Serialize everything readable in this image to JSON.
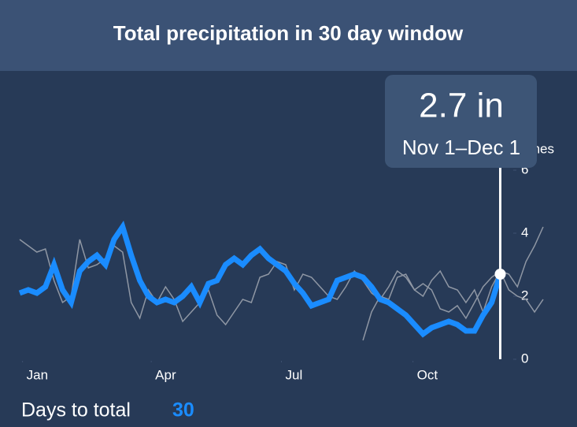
{
  "chart_data": {
    "type": "line",
    "title": "Total precipitation in 30 day window",
    "y_label": "inches",
    "x": [
      -2,
      4,
      10,
      16,
      22,
      28,
      34,
      40,
      46,
      52,
      58,
      64,
      70,
      76,
      82,
      88,
      94,
      100,
      106,
      112,
      118,
      124,
      130,
      136,
      142,
      148,
      154,
      160,
      166,
      172,
      178,
      184,
      190,
      196,
      202,
      208,
      214,
      220,
      226,
      232,
      238,
      244,
      250,
      256,
      262,
      268,
      274,
      280,
      286,
      292,
      298,
      304,
      310,
      316,
      322,
      328,
      334,
      340,
      346,
      352,
      358,
      364
    ],
    "series": [
      {
        "color": "#1a8cff",
        "width": 7,
        "values": [
          2.1,
          2.2,
          2.1,
          2.3,
          3.0,
          2.2,
          1.8,
          2.8,
          3.1,
          3.3,
          3.0,
          3.8,
          4.2,
          3.3,
          2.5,
          2.0,
          1.8,
          1.9,
          1.8,
          2.0,
          2.3,
          1.8,
          2.4,
          2.5,
          3.0,
          3.2,
          3.0,
          3.3,
          3.5,
          3.2,
          3.0,
          2.8,
          2.4,
          2.1,
          1.7,
          1.8,
          1.9,
          2.5,
          2.6,
          2.7,
          2.6,
          2.3,
          1.9,
          1.8,
          1.6,
          1.4,
          1.1,
          0.8,
          1.0,
          1.1,
          1.2,
          1.1,
          0.9,
          0.9,
          1.4,
          1.8,
          2.7,
          null,
          null,
          null,
          null,
          null
        ]
      },
      {
        "color": "#8f97a4",
        "width": 1.5,
        "values": [
          3.8,
          3.6,
          3.4,
          3.5,
          2.5,
          1.8,
          2.0,
          3.8,
          2.9,
          3.0,
          3.2,
          3.6,
          3.4,
          1.8,
          1.3,
          2.2,
          1.8,
          2.3,
          1.9,
          1.2,
          1.5,
          1.8,
          2.2,
          1.4,
          1.1,
          1.5,
          1.9,
          1.8,
          2.6,
          2.7,
          3.1,
          3.0,
          2.2,
          2.7,
          2.6,
          2.3,
          2.0,
          1.9,
          2.3,
          2.8,
          2.5,
          2.1,
          1.9,
          2.3,
          2.8,
          2.6,
          2.2,
          2.0,
          2.5,
          2.8,
          2.3,
          2.2,
          1.8,
          2.2,
          1.5,
          2.3,
          2.8,
          2.2,
          2.0,
          1.9,
          1.5,
          1.9
        ]
      },
      {
        "color": "#8f97a4",
        "width": 1.5,
        "values": [
          null,
          null,
          null,
          null,
          null,
          null,
          null,
          null,
          null,
          null,
          null,
          null,
          null,
          null,
          null,
          null,
          null,
          null,
          null,
          null,
          null,
          null,
          null,
          null,
          null,
          null,
          null,
          null,
          null,
          null,
          null,
          null,
          null,
          null,
          null,
          null,
          null,
          null,
          null,
          null,
          0.6,
          1.5,
          2.0,
          1.9,
          2.6,
          2.7,
          2.2,
          2.4,
          2.2,
          1.6,
          1.5,
          1.7,
          1.3,
          1.8,
          2.3,
          2.6,
          2.8,
          2.7,
          2.3,
          3.1,
          3.6,
          4.2
        ]
      }
    ],
    "xlim": [
      -2,
      364
    ],
    "xticks": [
      {
        "value": 0,
        "label": "Jan"
      },
      {
        "value": 90,
        "label": "Apr"
      },
      {
        "value": 181,
        "label": "Jul"
      },
      {
        "value": 273,
        "label": "Oct"
      }
    ],
    "ylim": [
      0,
      6
    ],
    "yticks": [
      0,
      2,
      4,
      6
    ],
    "tooltip": {
      "value": "2.7 in",
      "range": "Nov 1–Dec 1"
    }
  },
  "controls": {
    "label": "Days to total",
    "value": 30
  }
}
